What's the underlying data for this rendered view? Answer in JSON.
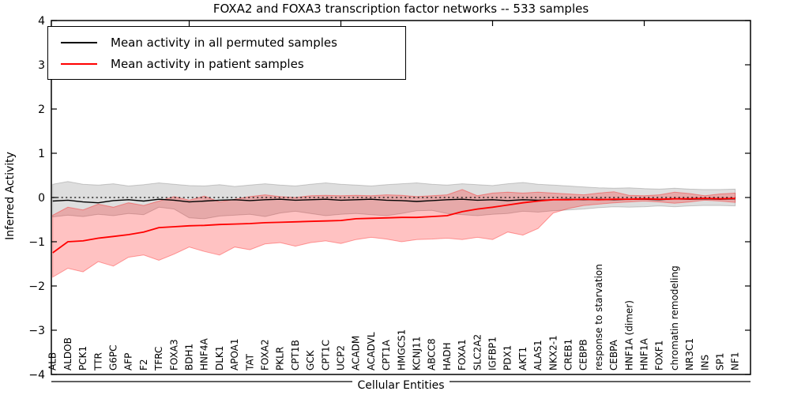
{
  "chart_data": {
    "type": "line",
    "title": "FOXA2 and FOXA3 transcription factor networks -- 533 samples",
    "xlabel": "Cellular Entities",
    "ylabel": "Inferred Activity",
    "ylim": [
      -4,
      4
    ],
    "yticks": [
      -4,
      -3,
      -2,
      -1,
      0,
      1,
      2,
      3,
      4
    ],
    "top_axis_tick_positions": [
      10,
      20,
      30,
      40
    ],
    "zero_reference_line": 0,
    "grid": false,
    "legend_position": "upper left",
    "categories": [
      "ALB",
      "ALDOB",
      "PCK1",
      "TTR",
      "G6PC",
      "AFP",
      "F2",
      "TFRC",
      "FOXA3",
      "BDH1",
      "HNF4A",
      "DLK1",
      "APOA1",
      "TAT",
      "FOXA2",
      "PKLR",
      "CPT1B",
      "GCK",
      "CPT1C",
      "UCP2",
      "ACADM",
      "ACADVL",
      "CPT1A",
      "HMGCS1",
      "KCNJ11",
      "ABCC8",
      "HADH",
      "FOXA1",
      "SLC2A2",
      "IGFBP1",
      "PDX1",
      "AKT1",
      "ALAS1",
      "NKX2-1",
      "CREB1",
      "CEBPB",
      "response to starvation",
      "CEBPA",
      "HNF1A (dimer)",
      "HNF1A",
      "FOXF1",
      "chromatin remodeling",
      "NR3C1",
      "INS",
      "SP1",
      "NF1"
    ],
    "series": [
      {
        "name": "Mean activity in all permuted samples",
        "color": "#000000",
        "style": "solid",
        "values": [
          -0.08,
          -0.06,
          -0.1,
          -0.12,
          -0.07,
          -0.05,
          -0.08,
          -0.04,
          -0.06,
          -0.1,
          -0.08,
          -0.06,
          -0.05,
          -0.07,
          -0.05,
          -0.04,
          -0.06,
          -0.05,
          -0.04,
          -0.06,
          -0.05,
          -0.04,
          -0.06,
          -0.07,
          -0.09,
          -0.07,
          -0.05,
          -0.04,
          -0.06,
          -0.05,
          -0.07,
          -0.05,
          -0.06,
          -0.05,
          -0.04,
          -0.05,
          -0.04,
          -0.05,
          -0.04,
          -0.04,
          -0.05,
          -0.03,
          -0.04,
          -0.03,
          -0.04,
          -0.03
        ]
      },
      {
        "name": "Mean activity in patient samples",
        "color": "#ff0000",
        "style": "solid",
        "values": [
          -1.25,
          -1.0,
          -0.98,
          -0.92,
          -0.88,
          -0.84,
          -0.78,
          -0.68,
          -0.66,
          -0.64,
          -0.63,
          -0.61,
          -0.6,
          -0.59,
          -0.57,
          -0.56,
          -0.55,
          -0.54,
          -0.53,
          -0.52,
          -0.48,
          -0.47,
          -0.46,
          -0.45,
          -0.45,
          -0.43,
          -0.41,
          -0.32,
          -0.26,
          -0.22,
          -0.17,
          -0.12,
          -0.08,
          -0.05,
          -0.05,
          -0.04,
          -0.05,
          -0.04,
          -0.04,
          -0.03,
          -0.04,
          -0.03,
          -0.03,
          -0.02,
          -0.03,
          -0.02
        ]
      }
    ],
    "bands": [
      {
        "name": "permuted samples spread",
        "fill": "rgba(0,0,0,0.13)",
        "edge": "rgba(0,0,0,0.18)",
        "upper": [
          0.3,
          0.36,
          0.3,
          0.28,
          0.31,
          0.26,
          0.29,
          0.33,
          0.3,
          0.27,
          0.26,
          0.29,
          0.25,
          0.28,
          0.31,
          0.28,
          0.26,
          0.3,
          0.33,
          0.3,
          0.28,
          0.26,
          0.29,
          0.31,
          0.33,
          0.3,
          0.28,
          0.31,
          0.29,
          0.27,
          0.31,
          0.34,
          0.3,
          0.28,
          0.26,
          0.24,
          0.22,
          0.21,
          0.22,
          0.2,
          0.19,
          0.21,
          0.19,
          0.18,
          0.18,
          0.19
        ],
        "lower": [
          -0.44,
          -0.4,
          -0.43,
          -0.38,
          -0.41,
          -0.36,
          -0.39,
          -0.22,
          -0.26,
          -0.46,
          -0.48,
          -0.42,
          -0.4,
          -0.38,
          -0.43,
          -0.35,
          -0.31,
          -0.36,
          -0.41,
          -0.38,
          -0.36,
          -0.39,
          -0.41,
          -0.36,
          -0.3,
          -0.29,
          -0.36,
          -0.39,
          -0.41,
          -0.38,
          -0.36,
          -0.31,
          -0.33,
          -0.3,
          -0.28,
          -0.26,
          -0.23,
          -0.21,
          -0.22,
          -0.21,
          -0.19,
          -0.21,
          -0.19,
          -0.18,
          -0.18,
          -0.19
        ]
      },
      {
        "name": "patient samples spread",
        "fill": "rgba(255,0,0,0.24)",
        "edge": "rgba(255,0,0,0.35)",
        "upper": [
          -0.4,
          -0.22,
          -0.28,
          -0.15,
          -0.22,
          -0.12,
          -0.18,
          -0.08,
          0.02,
          -0.06,
          0.03,
          -0.1,
          -0.04,
          0.02,
          0.06,
          0.02,
          0.0,
          0.04,
          0.05,
          0.04,
          0.05,
          0.04,
          0.06,
          0.05,
          0.02,
          0.04,
          0.06,
          0.18,
          0.04,
          0.1,
          0.12,
          0.1,
          0.12,
          0.1,
          0.08,
          0.06,
          0.1,
          0.13,
          0.05,
          0.04,
          0.06,
          0.12,
          0.09,
          0.04,
          0.08,
          0.1
        ],
        "lower": [
          -1.8,
          -1.6,
          -1.68,
          -1.45,
          -1.55,
          -1.35,
          -1.3,
          -1.42,
          -1.28,
          -1.12,
          -1.22,
          -1.3,
          -1.12,
          -1.18,
          -1.05,
          -1.02,
          -1.1,
          -1.02,
          -0.98,
          -1.04,
          -0.95,
          -0.9,
          -0.94,
          -1.0,
          -0.95,
          -0.94,
          -0.92,
          -0.95,
          -0.9,
          -0.95,
          -0.78,
          -0.85,
          -0.7,
          -0.35,
          -0.25,
          -0.18,
          -0.15,
          -0.12,
          -0.1,
          -0.08,
          -0.1,
          -0.13,
          -0.1,
          -0.06,
          -0.08,
          -0.11
        ]
      }
    ]
  }
}
